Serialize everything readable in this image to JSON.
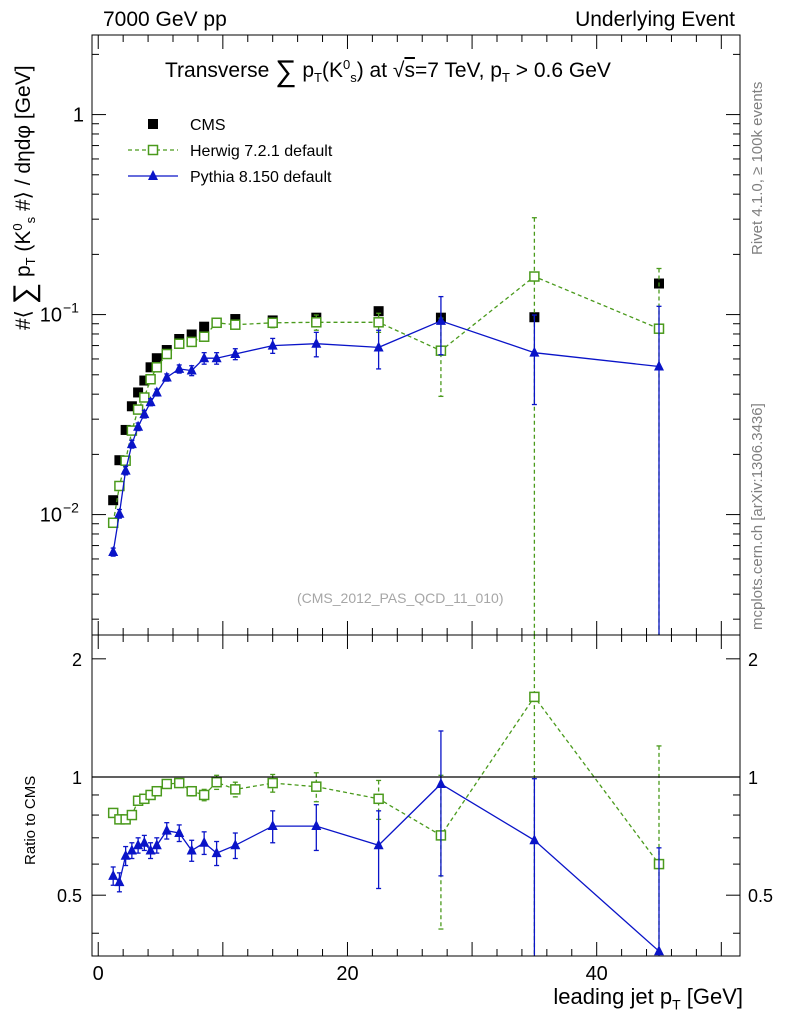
{
  "header": {
    "left": "7000 GeV pp",
    "right": "Underlying Event"
  },
  "side_labels": {
    "rivet": "Rivet 4.1.0, ≥ 100k events",
    "mcplots": "mcplots.cern.ch [arXiv:1306.3436]"
  },
  "reference": "(CMS_2012_PAS_QCD_11_010)",
  "colors": {
    "cms": "#000000",
    "herwig": "#4a9a1c",
    "pythia": "#0a14c8",
    "axis": "#000000"
  },
  "chart_data": [
    {
      "type": "scatter",
      "panel": "main",
      "title": "Transverse ∑ pT(K0s) at √s=7 TeV, pT > 0.6 GeV",
      "title_parts": {
        "a": "Transverse",
        "b": "p",
        "b_sub": "T",
        "c": "(K",
        "c_sup": "0",
        "c_sub": "s",
        "d": ") at ",
        "e": "s",
        "f": "=7 TeV, p",
        "f_sub": "T",
        "g": " > 0.6 GeV"
      },
      "ylabel_parts": {
        "a": "#⟨ ",
        "b": " p",
        "b_sub": "T",
        "c": " (K",
        "c_sup": "0",
        "c_sub": "s",
        "d": " #⟩ / dηdφ [GeV]"
      },
      "xlim": [
        -0.5,
        51.5
      ],
      "ylim": [
        0.0025,
        2.5
      ],
      "yscale": "log",
      "yticks": [
        0.01,
        0.1,
        1
      ],
      "ytick_labels": [
        {
          "base": "10",
          "exp": "−2"
        },
        {
          "base": "10",
          "exp": "−1"
        },
        {
          "base": "1",
          "exp": ""
        }
      ],
      "legend": {
        "position": "top-left",
        "entries": [
          "CMS",
          "Herwig 7.2.1 default",
          "Pythia 8.150 default"
        ]
      },
      "series": [
        {
          "name": "CMS",
          "marker": "square-filled",
          "x": [
            1.2,
            1.7,
            2.2,
            2.7,
            3.2,
            3.7,
            4.2,
            4.7,
            5.5,
            6.5,
            7.5,
            8.5,
            9.5,
            11.0,
            14.0,
            17.5,
            22.5,
            27.5,
            35.0,
            45.0
          ],
          "y": [
            0.0118,
            0.0187,
            0.0265,
            0.0348,
            0.0408,
            0.0468,
            0.0545,
            0.0605,
            0.0665,
            0.0755,
            0.0795,
            0.087,
            0.091,
            0.095,
            0.0935,
            0.0965,
            0.104,
            0.0965,
            0.097,
            0.143
          ]
        },
        {
          "name": "Herwig 7.2.1 default",
          "marker": "square-open",
          "line": "dashed",
          "x": [
            1.2,
            1.7,
            2.2,
            2.7,
            3.2,
            3.7,
            4.2,
            4.7,
            5.5,
            6.5,
            7.5,
            8.5,
            9.5,
            11.0,
            14.0,
            17.5,
            22.5,
            27.5,
            35.0,
            45.0
          ],
          "y": [
            0.0091,
            0.0139,
            0.0186,
            0.0263,
            0.0335,
            0.0385,
            0.0475,
            0.0545,
            0.0635,
            0.0715,
            0.073,
            0.0775,
            0.091,
            0.089,
            0.091,
            0.0915,
            0.0915,
            0.066,
            0.155,
            0.085
          ],
          "err_low": [
            0,
            0,
            0,
            0,
            0,
            0,
            0,
            0,
            0,
            0,
            0,
            0,
            0.004,
            0.004,
            0.005,
            0.008,
            0.01,
            0.027,
            0.154,
            0.084
          ],
          "err_high": [
            0,
            0,
            0,
            0,
            0,
            0,
            0,
            0,
            0,
            0,
            0,
            0,
            0.004,
            0.004,
            0.005,
            0.008,
            0.01,
            0.03,
            0.15,
            0.085
          ]
        },
        {
          "name": "Pythia 8.150 default",
          "marker": "triangle-filled",
          "line": "solid",
          "x": [
            1.2,
            1.7,
            2.2,
            2.7,
            3.2,
            3.7,
            4.2,
            4.7,
            5.5,
            6.5,
            7.5,
            8.5,
            9.5,
            11.0,
            14.0,
            17.5,
            22.5,
            27.5,
            35.0,
            45.0
          ],
          "y": [
            0.0065,
            0.0101,
            0.0166,
            0.0225,
            0.0275,
            0.0318,
            0.0365,
            0.0408,
            0.0485,
            0.0535,
            0.0525,
            0.0605,
            0.0605,
            0.0635,
            0.07,
            0.0715,
            0.0685,
            0.093,
            0.0645,
            0.055
          ],
          "err_low": [
            0.0003,
            0.0005,
            0.0008,
            0.001,
            0.0012,
            0.0014,
            0.0015,
            0.0016,
            0.002,
            0.0025,
            0.003,
            0.004,
            0.004,
            0.004,
            0.006,
            0.01,
            0.015,
            0.03,
            0.029,
            0.054
          ],
          "err_high": [
            0.0003,
            0.0005,
            0.0008,
            0.001,
            0.0012,
            0.0014,
            0.0015,
            0.0016,
            0.002,
            0.0025,
            0.003,
            0.004,
            0.004,
            0.004,
            0.006,
            0.01,
            0.015,
            0.03,
            0.035,
            0.055
          ]
        }
      ]
    },
    {
      "type": "scatter",
      "panel": "ratio",
      "ylabel": "Ratio to CMS",
      "xlabel_parts": {
        "a": "leading jet p",
        "a_sub": "T",
        "b": " [GeV]"
      },
      "xlim": [
        -0.5,
        51.5
      ],
      "ylim": [
        0.35,
        2.3
      ],
      "yscale": "log",
      "reference_line": 1,
      "yticks": [
        0.5,
        1,
        2
      ],
      "ytick_labels": [
        "0.5",
        "1",
        "2"
      ],
      "xticks": [
        0,
        20,
        40
      ],
      "xtick_labels": [
        "0",
        "20",
        "40"
      ],
      "series": [
        {
          "name": "Herwig 7.2.1 default",
          "marker": "square-open",
          "line": "dashed",
          "x": [
            1.2,
            1.7,
            2.2,
            2.7,
            3.2,
            3.7,
            4.2,
            4.7,
            5.5,
            6.5,
            7.5,
            8.5,
            9.5,
            11.0,
            14.0,
            17.5,
            22.5,
            27.5,
            35.0,
            45.0
          ],
          "y": [
            0.81,
            0.78,
            0.78,
            0.8,
            0.87,
            0.88,
            0.9,
            0.92,
            0.96,
            0.965,
            0.92,
            0.9,
            0.97,
            0.93,
            0.965,
            0.945,
            0.88,
            0.71,
            1.6,
            0.6
          ],
          "err_low": [
            0.01,
            0.01,
            0.01,
            0.01,
            0.015,
            0.015,
            0.015,
            0.02,
            0.02,
            0.02,
            0.025,
            0.03,
            0.04,
            0.04,
            0.05,
            0.08,
            0.1,
            0.3,
            1.55,
            0.58
          ],
          "err_high": [
            0.01,
            0.01,
            0.01,
            0.01,
            0.015,
            0.015,
            0.015,
            0.02,
            0.02,
            0.02,
            0.025,
            0.03,
            0.04,
            0.04,
            0.05,
            0.08,
            0.1,
            0.3,
            1.0,
            0.6
          ]
        },
        {
          "name": "Pythia 8.150 default",
          "marker": "triangle-filled",
          "line": "solid",
          "x": [
            1.2,
            1.7,
            2.2,
            2.7,
            3.2,
            3.7,
            4.2,
            4.7,
            5.5,
            6.5,
            7.5,
            8.5,
            9.5,
            11.0,
            14.0,
            17.5,
            22.5,
            27.5,
            35.0,
            45.0
          ],
          "y": [
            0.56,
            0.54,
            0.63,
            0.65,
            0.67,
            0.68,
            0.65,
            0.67,
            0.73,
            0.72,
            0.65,
            0.68,
            0.64,
            0.67,
            0.75,
            0.75,
            0.67,
            0.96,
            0.69,
            0.36
          ],
          "err_low": [
            0.03,
            0.03,
            0.035,
            0.03,
            0.03,
            0.03,
            0.03,
            0.03,
            0.035,
            0.035,
            0.04,
            0.045,
            0.045,
            0.05,
            0.07,
            0.1,
            0.15,
            0.4,
            0.4,
            0.35
          ],
          "err_high": [
            0.03,
            0.03,
            0.035,
            0.03,
            0.03,
            0.03,
            0.03,
            0.03,
            0.035,
            0.035,
            0.04,
            0.045,
            0.045,
            0.05,
            0.07,
            0.1,
            0.15,
            0.35,
            0.3,
            0.3
          ]
        }
      ]
    }
  ]
}
